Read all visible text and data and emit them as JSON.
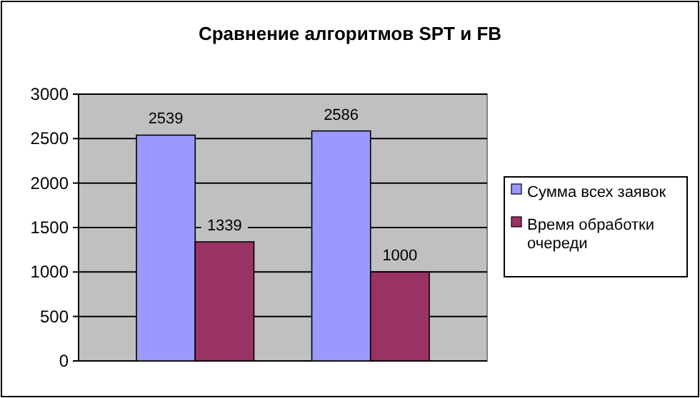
{
  "chart_data": {
    "type": "bar",
    "title": "Сравнение алгоритмов SPT и FB",
    "categories": [
      null,
      null
    ],
    "series": [
      {
        "name": "Сумма всех заявок",
        "color": "#9999ff",
        "values": [
          2539,
          2586
        ]
      },
      {
        "name": "Время обработки очереди",
        "color": "#993366",
        "values": [
          1339,
          1000
        ]
      }
    ],
    "ylim": [
      0,
      3000
    ],
    "yticks": [
      0,
      500,
      1000,
      1500,
      2000,
      2500,
      3000
    ],
    "grid": "y",
    "legend": "right",
    "data_labels": true
  }
}
